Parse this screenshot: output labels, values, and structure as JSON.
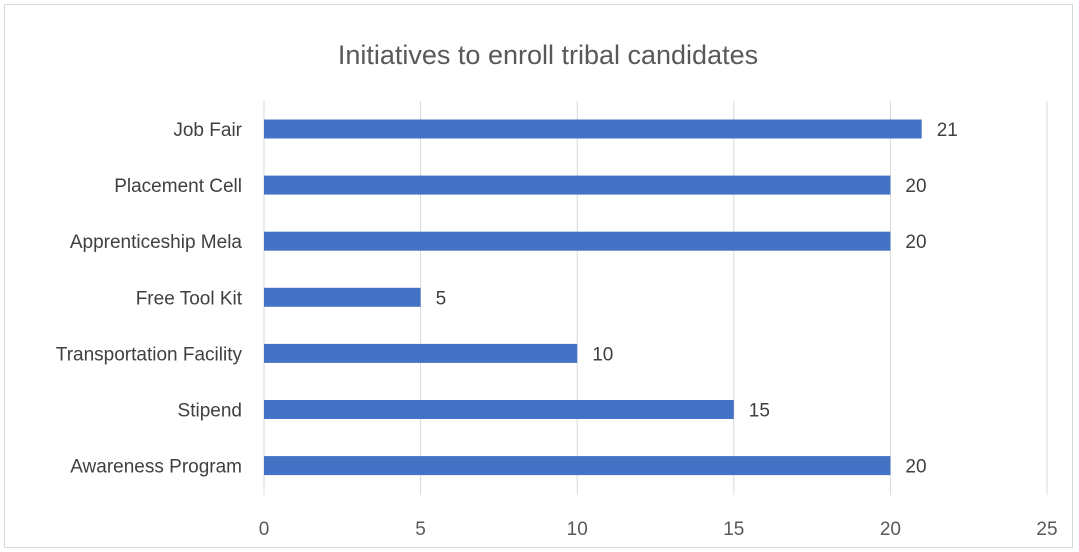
{
  "chart_data": {
    "type": "bar",
    "orientation": "horizontal",
    "title": "Initiatives to enroll tribal candidates",
    "categories": [
      "Job Fair",
      "Placement Cell",
      "Apprenticeship Mela",
      "Free Tool Kit",
      "Transportation Facility",
      "Stipend",
      "Awareness Program"
    ],
    "values": [
      21,
      20,
      20,
      5,
      10,
      15,
      20
    ],
    "xlim": [
      0,
      25
    ],
    "xticks": [
      0,
      5,
      10,
      15,
      20,
      25
    ],
    "xlabel": "",
    "ylabel": "",
    "grid": "vertical",
    "legend": "none",
    "data_labels": true,
    "bar_color": "#4472c4"
  }
}
